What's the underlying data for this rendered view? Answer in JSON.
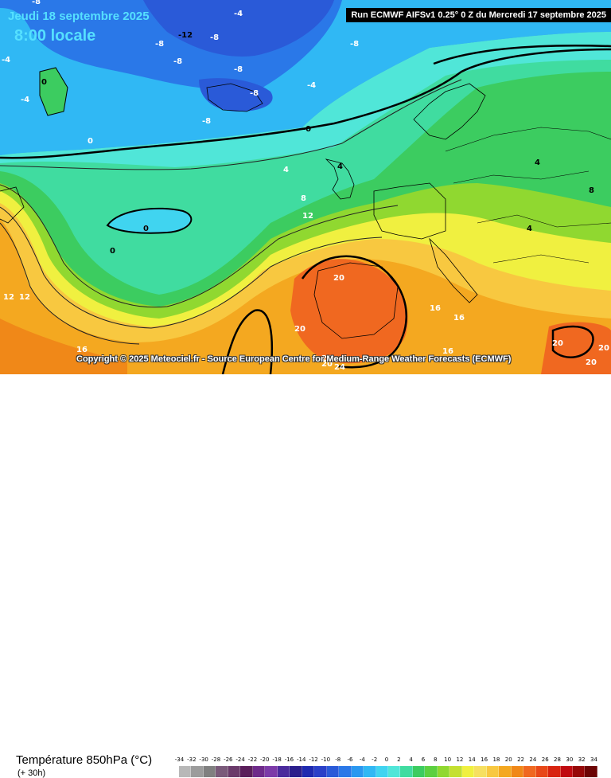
{
  "header": {
    "date": "Jeudi 18 septembre 2025",
    "local_time": "8:00 locale",
    "run_info": "Run ECMWF AIFSv1 0.25° 0 Z du Mercredi 17 septembre 2025"
  },
  "footer": {
    "copyright": "Copyright © 2025 Meteociel.fr - Source European Centre for Medium-Range Weather Forecasts (ECMWF)",
    "parameter": "Température 850hPa (°C)",
    "lead_time": "(+ 30h)"
  },
  "scale": {
    "ticks": [
      "-34",
      "-32",
      "-30",
      "-28",
      "-26",
      "-24",
      "-22",
      "-20",
      "-18",
      "-16",
      "-14",
      "-12",
      "-10",
      "-8",
      "-6",
      "-4",
      "-2",
      "0",
      "2",
      "4",
      "6",
      "8",
      "10",
      "12",
      "14",
      "16",
      "18",
      "20",
      "22",
      "24",
      "26",
      "28",
      "30",
      "32",
      "34"
    ],
    "colors": [
      "#b8b8b8",
      "#9c9c9c",
      "#808080",
      "#7a5a7a",
      "#6a3a6a",
      "#5a1e5a",
      "#6e2a8a",
      "#7c3aa8",
      "#4a2a9c",
      "#2a1e8c",
      "#1e2ab0",
      "#2a40c8",
      "#2a5ad8",
      "#2a78e8",
      "#2a98f0",
      "#30b8f4",
      "#40d4f0",
      "#50e6d8",
      "#40dca0",
      "#3ccc60",
      "#5cd040",
      "#90d830",
      "#c4e030",
      "#f0f040",
      "#f6e060",
      "#f8c840",
      "#f4a820",
      "#f08818",
      "#f06820",
      "#e84818",
      "#d82410",
      "#c00a10",
      "#960808",
      "#6c0404"
    ]
  },
  "map": {
    "colors": {
      "deep_blue": "#2a5ad8",
      "mid_blue": "#2a78e8",
      "light_blue": "#30b8f4",
      "cyan": "#40d4f0",
      "teal": "#50e6d8",
      "green_teal": "#40dca0",
      "green": "#3ccc60",
      "yellow_green": "#c4e030",
      "yellow": "#f0f040",
      "pale_yellow": "#f6e060",
      "orange": "#f4a820",
      "red_orange": "#f06820",
      "red": "#e84818"
    },
    "isotherm_labels": [
      {
        "text": "-8",
        "color": "#ffffff"
      },
      {
        "text": "-4",
        "color": "#ffffff"
      },
      {
        "text": "-8",
        "color": "#ffffff"
      },
      {
        "text": "-12",
        "color": "#000000"
      },
      {
        "text": "-8",
        "color": "#ffffff"
      },
      {
        "text": "-8",
        "color": "#ffffff"
      },
      {
        "text": "-8",
        "color": "#ffffff"
      },
      {
        "text": "-8",
        "color": "#ffffff"
      },
      {
        "text": "-8",
        "color": "#ffffff"
      },
      {
        "text": "-8",
        "color": "#ffffff"
      },
      {
        "text": "-4",
        "color": "#ffffff"
      },
      {
        "text": "-4",
        "color": "#ffffff"
      },
      {
        "text": "-4",
        "color": "#ffffff"
      },
      {
        "text": "0",
        "color": "#ffffff"
      },
      {
        "text": "0",
        "color": "#000000"
      },
      {
        "text": "-0",
        "color": "#000000"
      },
      {
        "text": "0",
        "color": "#ffffff"
      },
      {
        "text": "4",
        "color": "#ffffff"
      },
      {
        "text": "4",
        "color": "#000000"
      },
      {
        "text": "4",
        "color": "#000000"
      },
      {
        "text": "4",
        "color": "#000000"
      },
      {
        "text": "8",
        "color": "#ffffff"
      },
      {
        "text": "8",
        "color": "#000000"
      },
      {
        "text": "12",
        "color": "#ffffff"
      },
      {
        "text": "0",
        "color": "#000000"
      },
      {
        "text": "0",
        "color": "#000000"
      },
      {
        "text": "12",
        "color": "#ffffff"
      },
      {
        "text": "12",
        "color": "#ffffff"
      },
      {
        "text": "20",
        "color": "#ffffff"
      },
      {
        "text": "20",
        "color": "#ffffff"
      },
      {
        "text": "16",
        "color": "#ffffff"
      },
      {
        "text": "16",
        "color": "#ffffff"
      },
      {
        "text": "16",
        "color": "#ffffff"
      },
      {
        "text": "16",
        "color": "#ffffff"
      },
      {
        "text": "20",
        "color": "#ffffff"
      },
      {
        "text": "24",
        "color": "#ffffff"
      },
      {
        "text": "20",
        "color": "#ffffff"
      },
      {
        "text": "20",
        "color": "#ffffff"
      },
      {
        "text": "20",
        "color": "#ffffff"
      },
      {
        "text": "20",
        "color": "#ffffff"
      }
    ]
  }
}
